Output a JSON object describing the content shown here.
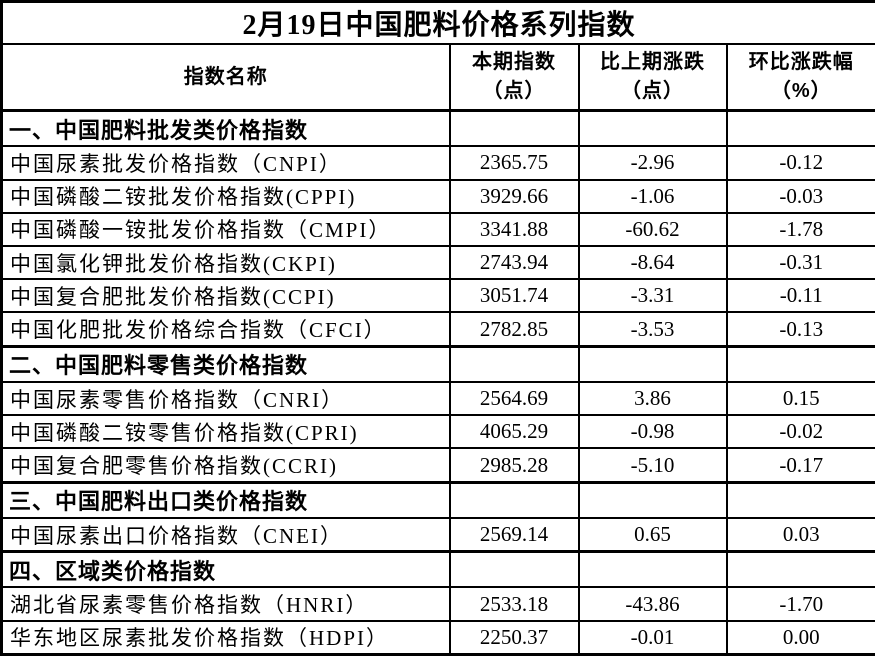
{
  "title": "2月19日中国肥料价格系列指数",
  "table": {
    "headers": {
      "name": "指数名称",
      "current": "本期指数\n（点）",
      "change": "比上期涨跌\n（点）",
      "pct": "环比涨跌幅\n（%）"
    },
    "rows": [
      {
        "type": "section",
        "name": "一、中国肥料批发类价格指数",
        "current": "",
        "change": "",
        "pct": ""
      },
      {
        "type": "data",
        "name": "中国尿素批发价格指数（CNPI）",
        "current": "2365.75",
        "change": "-2.96",
        "pct": "-0.12"
      },
      {
        "type": "data",
        "name": "中国磷酸二铵批发价格指数(CPPI)",
        "current": "3929.66",
        "change": "-1.06",
        "pct": "-0.03"
      },
      {
        "type": "data",
        "name": "中国磷酸一铵批发价格指数（CMPI）",
        "current": "3341.88",
        "change": "-60.62",
        "pct": "-1.78"
      },
      {
        "type": "data",
        "name": "中国氯化钾批发价格指数(CKPI)",
        "current": "2743.94",
        "change": "-8.64",
        "pct": "-0.31"
      },
      {
        "type": "data",
        "name": "中国复合肥批发价格指数(CCPI)",
        "current": "3051.74",
        "change": "-3.31",
        "pct": "-0.11"
      },
      {
        "type": "data",
        "name": "中国化肥批发价格综合指数（CFCI）",
        "current": "2782.85",
        "change": "-3.53",
        "pct": "-0.13"
      },
      {
        "type": "section",
        "name": "二、中国肥料零售类价格指数",
        "current": "",
        "change": "",
        "pct": ""
      },
      {
        "type": "data",
        "name": "中国尿素零售价格指数（CNRI）",
        "current": "2564.69",
        "change": "3.86",
        "pct": "0.15"
      },
      {
        "type": "data",
        "name": "中国磷酸二铵零售价格指数(CPRI)",
        "current": "4065.29",
        "change": "-0.98",
        "pct": "-0.02"
      },
      {
        "type": "data",
        "name": "中国复合肥零售价格指数(CCRI)",
        "current": "2985.28",
        "change": "-5.10",
        "pct": "-0.17"
      },
      {
        "type": "section",
        "name": "三、中国肥料出口类价格指数",
        "current": "",
        "change": "",
        "pct": ""
      },
      {
        "type": "data",
        "name": "中国尿素出口价格指数（CNEI）",
        "current": "2569.14",
        "change": "0.65",
        "pct": "0.03"
      },
      {
        "type": "section",
        "name": "四、区域类价格指数",
        "current": "",
        "change": "",
        "pct": ""
      },
      {
        "type": "data",
        "name": "湖北省尿素零售价格指数（HNRI）",
        "current": "2533.18",
        "change": "-43.86",
        "pct": "-1.70"
      },
      {
        "type": "data",
        "name": "华东地区尿素批发价格指数（HDPI）",
        "current": "2250.37",
        "change": "-0.01",
        "pct": "0.00"
      }
    ]
  },
  "colors": {
    "border": "#000000",
    "text": "#000000",
    "background": "#ffffff"
  }
}
